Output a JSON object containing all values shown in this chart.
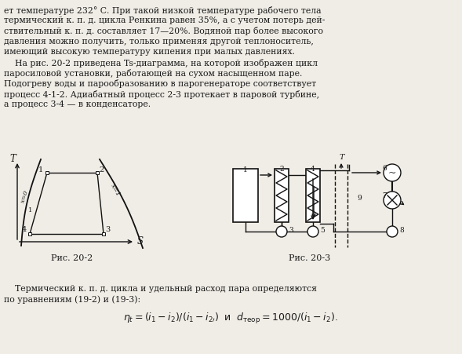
{
  "bg_color": "#f0ede6",
  "text_color": "#1a1a1a",
  "para1_lines": [
    "ет температуре 232° С. При такой низкой температуре рабочего тела",
    "термический к. п. д. цикла Ренкина равен 35%, а с учетом потерь дей-",
    "ствительный к. п. д. составляет 17—20%. Водяной пар более высокого",
    "давления можно получить, только применяя другой теплоноситель,",
    "имеющий высокую температуру кипения при малых давлениях."
  ],
  "para2_lines": [
    "    На рис. 20-2 приведена Ts-диаграмма, на которой изображен цикл",
    "паросиловой установки, работающей на сухом насыщенном паре.",
    "Подогреву воды и парообразованию в парогенераторе соответствует",
    "процесс 4-1-2. Адиабатный процесс 2-3 протекает в паровой турбине,",
    "а процесс 3-4 — в конденсаторе."
  ],
  "caption1": "Рис. 20-2",
  "caption2": "Рис. 20-3",
  "para3_lines": [
    "    Термический к. п. д. цикла и удельный расход пара определяются",
    "по уравнениям (19-2) и (19-3):"
  ],
  "line_color": "#111111",
  "line_width": 1.0
}
